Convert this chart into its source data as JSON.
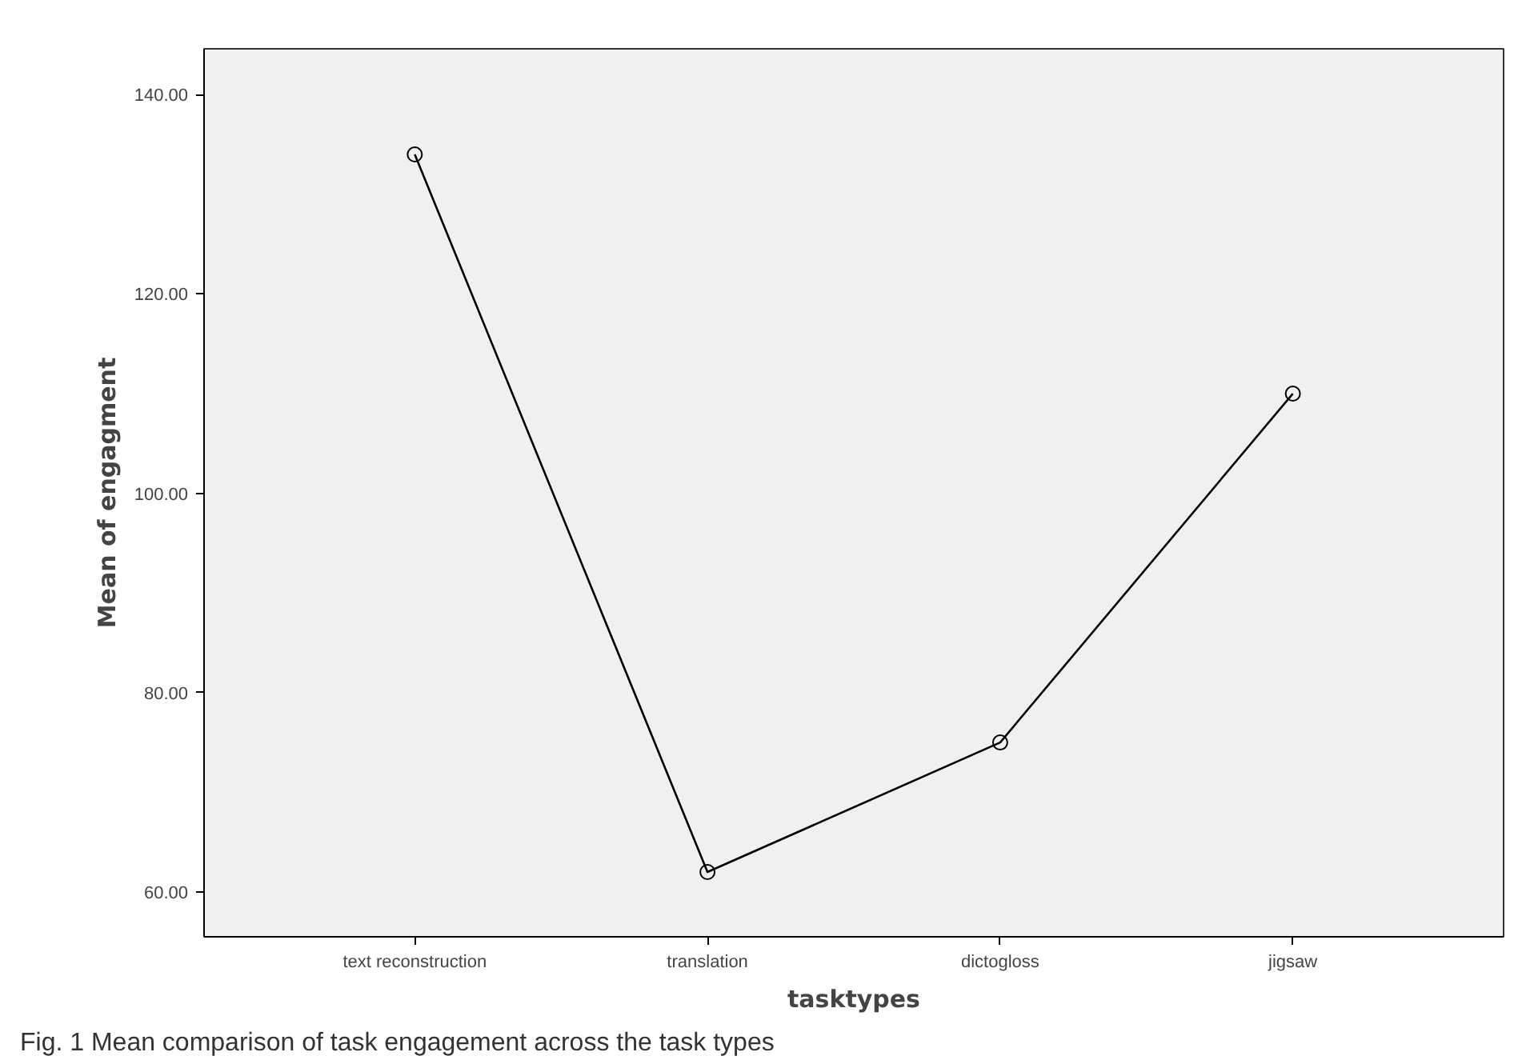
{
  "chart_data": {
    "type": "line",
    "xlabel": "tasktypes",
    "ylabel": "Mean of engagment",
    "categories": [
      "text reconstruction",
      "translation",
      "dictogloss",
      "jigsaw"
    ],
    "series": [
      {
        "color": "#000000",
        "values": [
          134,
          62,
          75,
          110
        ]
      }
    ],
    "ylim": [
      55.5,
      144.6
    ],
    "yticks": [
      {
        "value": 60,
        "label": "60.00"
      },
      {
        "value": 80,
        "label": "80.00"
      },
      {
        "value": 100,
        "label": "100.00"
      },
      {
        "value": 120,
        "label": "120.00"
      },
      {
        "value": 140,
        "label": "140.00"
      }
    ],
    "grid": false,
    "marker": "circle",
    "line_style": "solid",
    "annotations": [
      "Fig. 1 Mean comparison of task engagement across the task types"
    ]
  }
}
